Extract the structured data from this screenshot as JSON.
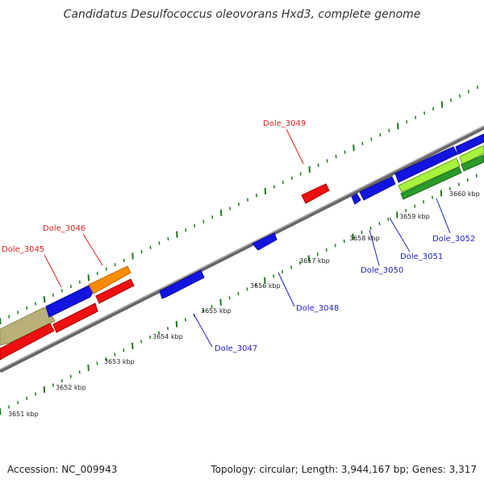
{
  "title": "Candidatus Desulfococcus oleovorans Hxd3, complete genome",
  "footer": {
    "accession": "Accession: NC_009943",
    "summary": "Topology: circular; Length: 3,944,167 bp; Genes: 3,317"
  },
  "colors": {
    "backbone": "#8a8a8a",
    "tick": "#1f7a1f",
    "red_label": "#dd2222",
    "blue_label": "#1f1fbb"
  },
  "ticks": [
    {
      "label": "3651 kbp"
    },
    {
      "label": "3652 kbp"
    },
    {
      "label": "3653 kbp"
    },
    {
      "label": "3654 kbp"
    },
    {
      "label": "3655 kbp"
    },
    {
      "label": "3656 kbp"
    },
    {
      "label": "3657 kbp"
    },
    {
      "label": "3658 kbp"
    },
    {
      "label": "3659 kbp"
    },
    {
      "label": "3660 kbp"
    }
  ],
  "gene_labels": [
    {
      "text": "Dole_3045",
      "color": "red"
    },
    {
      "text": "Dole_3046",
      "color": "red"
    },
    {
      "text": "Dole_3049",
      "color": "red"
    },
    {
      "text": "Dole_3047",
      "color": "blue"
    },
    {
      "text": "Dole_3048",
      "color": "blue"
    },
    {
      "text": "Dole_3050",
      "color": "blue"
    },
    {
      "text": "Dole_3051",
      "color": "blue"
    },
    {
      "text": "Dole_3052",
      "color": "blue"
    }
  ]
}
